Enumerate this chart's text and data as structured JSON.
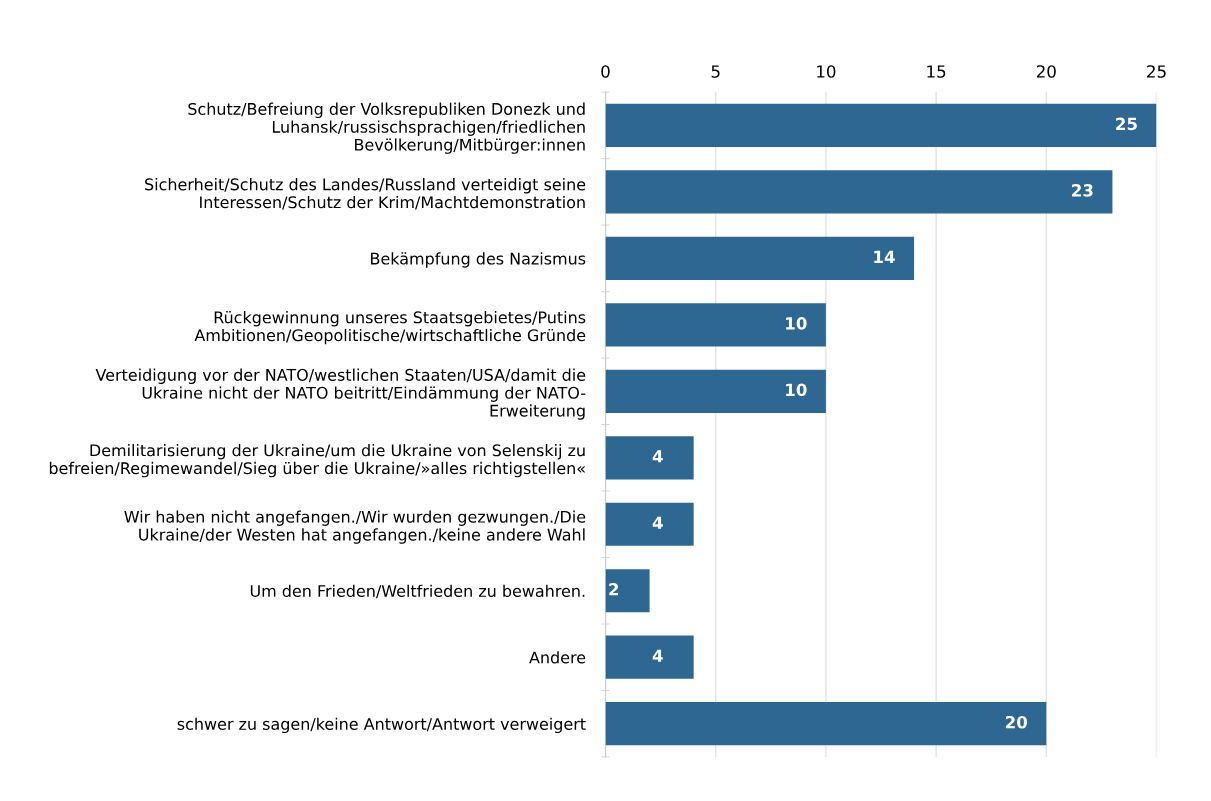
{
  "chart_data": {
    "type": "bar",
    "orientation": "horizontal",
    "categories": [
      "Schutz/Befreiung der Volksrepubliken Donezk und\nLuhansk/russischsprachigen/friedlichen\nBevölkerung/Mitbürger:innen",
      "Sicherheit/Schutz des Landes/Russland verteidigt seine\nInteressen/Schutz der Krim/Machtdemonstration",
      "Bekämpfung des Nazismus",
      "Rückgewinnung unseres Staatsgebietes/Putins\nAmbitionen/Geopolitische/wirtschaftliche Gründe",
      "Verteidigung vor der NATO/westlichen Staaten/USA/damit die\nUkraine nicht der NATO beitritt/Eindämmung der NATO-\nErweiterung",
      "Demilitarisierung der Ukraine/um die Ukraine von Selenskij zu\nbefreien/Regimewandel/Sieg über die Ukraine/»alles richtigstellen«",
      "Wir haben nicht angefangen./Wir wurden gezwungen./Die\nUkraine/der Westen hat angefangen./keine andere Wahl",
      "Um den Frieden/Weltfrieden zu bewahren.",
      "Andere",
      "schwer zu sagen/keine Antwort/Antwort verweigert"
    ],
    "values": [
      25,
      23,
      14,
      10,
      10,
      4,
      4,
      2,
      4,
      20
    ],
    "color": "#2e6892",
    "xlim": [
      0,
      25
    ],
    "xticks": [
      0,
      5,
      10,
      15,
      20,
      25
    ],
    "grid": "x",
    "data_labels": true
  }
}
